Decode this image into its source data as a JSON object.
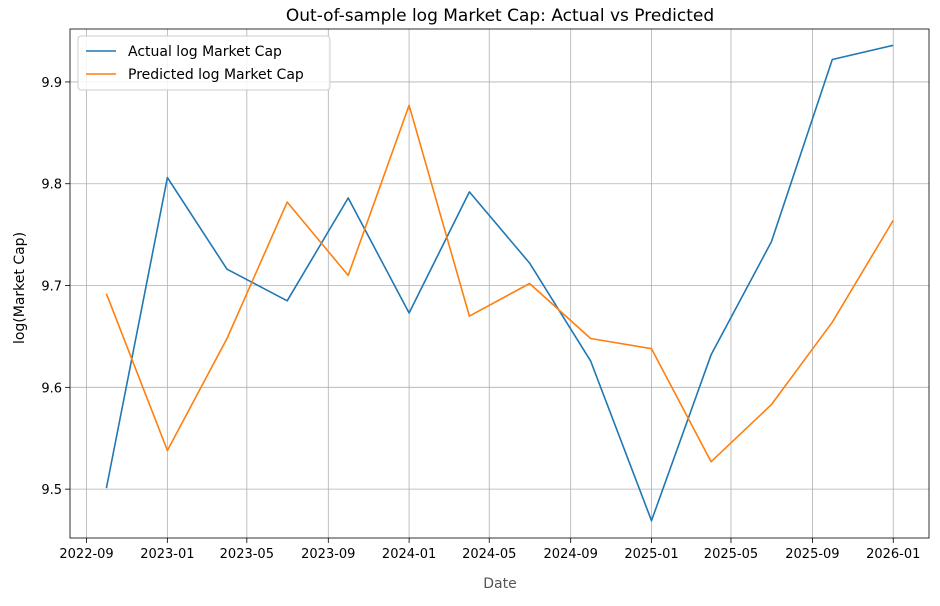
{
  "chart_data": {
    "type": "line",
    "title": "Out-of-sample log Market Cap: Actual vs Predicted",
    "xlabel": "Date",
    "ylabel": "log(Market Cap)",
    "x_range": [
      "2022-08-07",
      "2026-02-24"
    ],
    "ylim": [
      9.452,
      9.952
    ],
    "x_ticks": [
      "2022-09",
      "2023-01",
      "2023-05",
      "2023-09",
      "2024-01",
      "2024-05",
      "2024-09",
      "2025-01",
      "2025-05",
      "2025-09",
      "2026-01"
    ],
    "y_ticks": [
      "9.5",
      "9.6",
      "9.7",
      "9.8",
      "9.9"
    ],
    "grid": true,
    "legend_position": "upper-left",
    "x": [
      "2022-10-01",
      "2023-01-01",
      "2023-04-01",
      "2023-07-01",
      "2023-10-01",
      "2024-01-01",
      "2024-04-01",
      "2024-07-01",
      "2024-10-01",
      "2025-01-01",
      "2025-04-01",
      "2025-07-01",
      "2025-10-01",
      "2026-01-01"
    ],
    "series": [
      {
        "name": "Actual log Market Cap",
        "color": "#1f77b4",
        "values": [
          9.501,
          9.806,
          9.716,
          9.685,
          9.786,
          9.673,
          9.792,
          9.722,
          9.626,
          9.469,
          9.632,
          9.743,
          9.922,
          9.936
        ]
      },
      {
        "name": "Predicted log Market Cap",
        "color": "#ff7f0e",
        "values": [
          9.692,
          9.538,
          9.648,
          9.782,
          9.71,
          9.877,
          9.67,
          9.702,
          9.648,
          9.638,
          9.527,
          9.583,
          9.664,
          9.764
        ]
      }
    ]
  }
}
